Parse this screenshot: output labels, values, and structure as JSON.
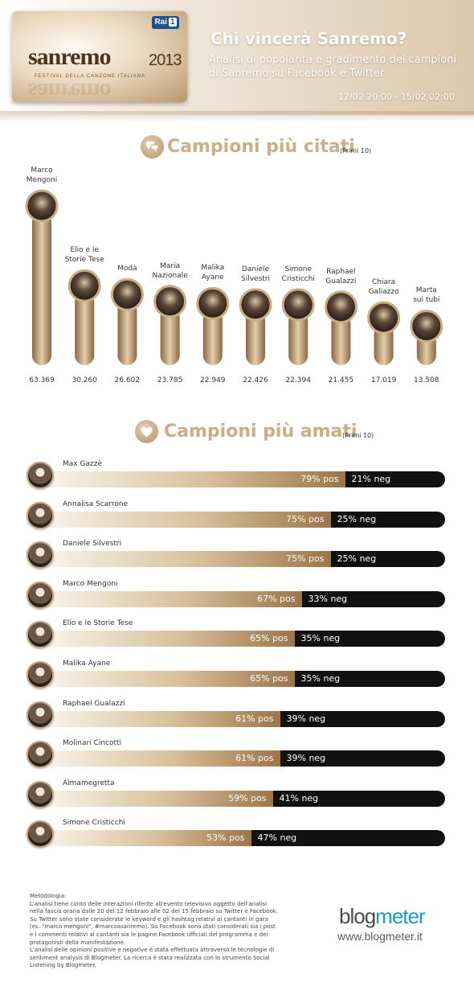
{
  "header": {
    "logo_text": "sanremo",
    "logo_year": "2013",
    "logo_sub": "FESTIVAL DELLA CANZONE ITALIANA",
    "broadcaster": "Rai",
    "channel": "1",
    "title": "Chi vincerà Sanremo?",
    "subtitle": "Analisi di popolarità e gradimento dei campioni di Sanremo su Facebook e Twitter",
    "date_range": "12/02 20:00 - 15/02 02:00"
  },
  "sections": {
    "cited": {
      "title": "Campioni più citati",
      "note": "(Primi 10)",
      "icon": "speech-bubbles-icon"
    },
    "loved": {
      "title": "Campioni più amati",
      "note": "(Primi 10)",
      "icon": "heart-icon"
    }
  },
  "colors": {
    "gold": "#cbae86",
    "bar_gold_dark": "#9c7548",
    "neg": "#111111"
  },
  "chart_data": [
    {
      "type": "bar",
      "title": "Campioni più citati",
      "subtitle": "(Primi 10)",
      "categories": [
        "Marco Mengoni",
        "Elio e le Storie Tese",
        "Modà",
        "Maria Nazionale",
        "Malika Ayane",
        "Daniele Silvestri",
        "Simone Cristicchi",
        "Raphael Gualazzi",
        "Chiara Galiazzo",
        "Marta sui tubi"
      ],
      "labels": [
        [
          "Marco",
          "Mengoni"
        ],
        [
          "Elio e le",
          "Storie Tese"
        ],
        [
          "Modà"
        ],
        [
          "Maria",
          "Nazionale"
        ],
        [
          "Malika",
          "Ayane"
        ],
        [
          "Daniele",
          "Silvestri"
        ],
        [
          "Simone",
          "Cristicchi"
        ],
        [
          "Raphael",
          "Gualazzi"
        ],
        [
          "Chiara",
          "Galiazzo"
        ],
        [
          "Marta",
          "sui tubi"
        ]
      ],
      "values": [
        63369,
        30260,
        26602,
        23785,
        22949,
        22426,
        22394,
        21455,
        17019,
        13508
      ],
      "value_labels": [
        "63.369",
        "30.260",
        "26.602",
        "23.785",
        "22.949",
        "22.426",
        "22.394",
        "21.455",
        "17.019",
        "13.508"
      ]
    },
    {
      "type": "bar",
      "title": "Campioni più amati",
      "subtitle": "(Primi 10)",
      "categories": [
        "Max Gazzè",
        "Annalisa Scarrone",
        "Daniele Silvestri",
        "Marco Mengoni",
        "Elio e le Storie Tese",
        "Malika Ayane",
        "Raphael Gualazzi",
        "Molinari Cincotti",
        "Almamegretta",
        "Simone Cristicchi"
      ],
      "series": [
        {
          "name": "pos",
          "values": [
            79,
            75,
            75,
            67,
            65,
            65,
            61,
            61,
            59,
            53
          ]
        },
        {
          "name": "neg",
          "values": [
            21,
            25,
            25,
            33,
            35,
            35,
            39,
            39,
            41,
            47
          ]
        }
      ],
      "unit": "%",
      "pos_suffix": "% pos",
      "neg_suffix": "% neg"
    }
  ],
  "footer": {
    "methodology": [
      "Metodologia:",
      "L'analisi tiene conto delle interazioni riferite all'evento televisivo oggetto dell'analisi",
      "nella fascia oraria dalle 20 del 12 febbraio alle 02 del 15 febbraio su Twitter e Facebook.",
      "Su Twitter sono state considerate le keyword e gli hashtag relativi ai cantanti in gara",
      "(es. \"marco mengoni\", #marcoasanremo). Su Facebook sono stati considerati sia i post",
      "e i commenti relativi ai cantanti sia le pagine Facebook ufficiali del programma e dei",
      "protagonisti della manifestazione.",
      "L'analisi delle opinioni positive e negative è stata effettuata attraverso le tecnologie di",
      "sentiment analysis di Blogmeter. La ricerca è stata realizzata con lo strumento Social",
      "Listening by Blogmeter."
    ],
    "brand_a": "blog",
    "brand_b": "meter",
    "brand_url": "www.blogmeter.it"
  }
}
